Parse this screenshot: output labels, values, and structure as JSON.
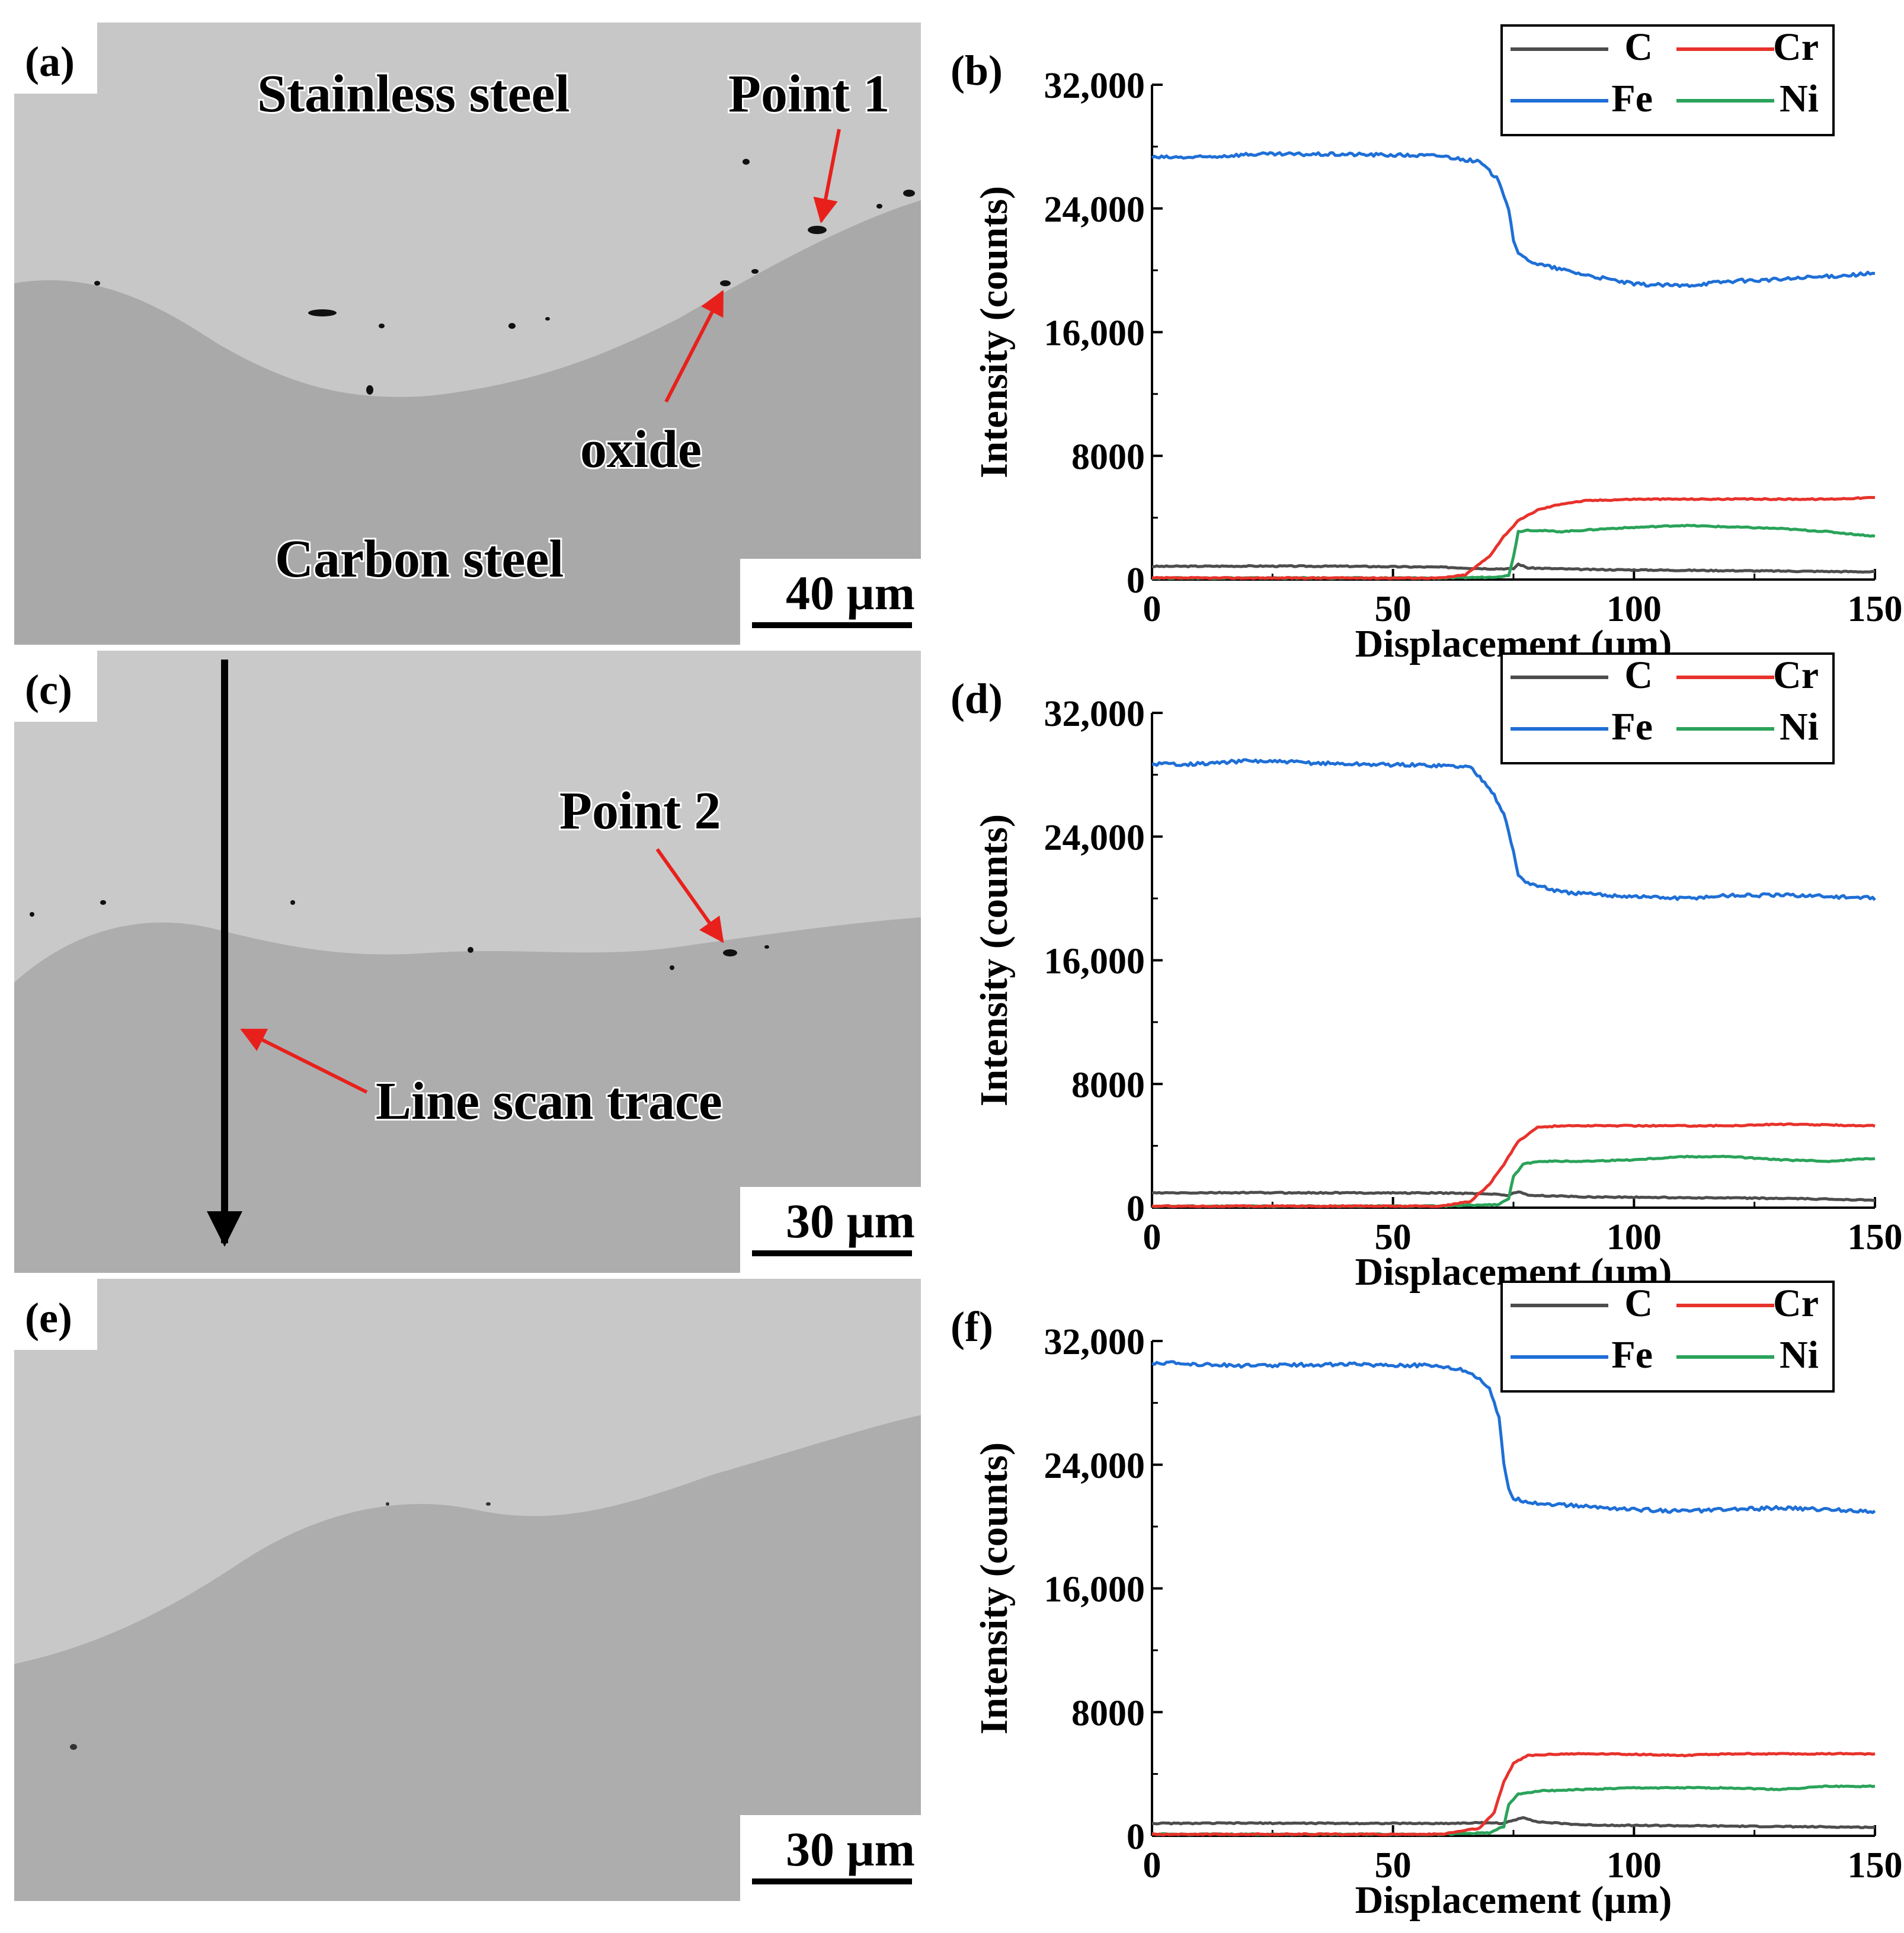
{
  "panels": [
    {
      "id": "a",
      "label": "(a)",
      "scale_bar": "40 µm",
      "annotations": {
        "top_region": "Stainless steel",
        "bottom_region": "Carbon steel",
        "point": "Point 1",
        "oxide": "oxide"
      }
    },
    {
      "id": "c",
      "label": "(c)",
      "scale_bar": "30 µm",
      "annotations": {
        "point": "Point 2",
        "trace": "Line scan trace"
      }
    },
    {
      "id": "e",
      "label": "(e)",
      "scale_bar": "30 µm",
      "annotations": {}
    }
  ],
  "colors": {
    "C": "#4d4d4d",
    "Cr": "#e8322c",
    "Fe": "#1f6fd6",
    "Ni": "#2aa35a",
    "arrow_red": "#e8201c"
  },
  "chart_data": [
    {
      "label": "(b)",
      "type": "line",
      "xlabel": "Displacement (µm)",
      "ylabel": "Intensity (counts)",
      "xlim": [
        0,
        150
      ],
      "ylim": [
        0,
        32000
      ],
      "xticks": [
        0,
        50,
        100,
        150
      ],
      "xtick_labels": [
        "0",
        "50",
        "100",
        "150"
      ],
      "yticks": [
        0,
        8000,
        16000,
        24000,
        32000
      ],
      "ytick_labels": [
        "0",
        "8000",
        "16,000",
        "24,000",
        "32,000"
      ],
      "legend": [
        "C",
        "Cr",
        "Fe",
        "Ni"
      ],
      "legend_position": "top-right",
      "series": [
        {
          "name": "Fe",
          "x": [
            0,
            10,
            20,
            40,
            60,
            68,
            72,
            74,
            75,
            76,
            80,
            90,
            100,
            110,
            120,
            130,
            140,
            150
          ],
          "y": [
            27300,
            27300,
            27500,
            27500,
            27400,
            27000,
            25800,
            24000,
            22000,
            21000,
            20400,
            19700,
            19100,
            19000,
            19300,
            19400,
            19600,
            19800
          ]
        },
        {
          "name": "Cr",
          "x": [
            0,
            60,
            65,
            70,
            73,
            76,
            80,
            85,
            90,
            100,
            110,
            120,
            130,
            140,
            150
          ],
          "y": [
            100,
            100,
            300,
            1500,
            2800,
            3800,
            4500,
            4900,
            5100,
            5200,
            5200,
            5200,
            5200,
            5200,
            5300
          ]
        },
        {
          "name": "Ni",
          "x": [
            0,
            60,
            70,
            74,
            75,
            76,
            78,
            85,
            95,
            110,
            120,
            130,
            140,
            150
          ],
          "y": [
            100,
            100,
            150,
            250,
            1500,
            3100,
            3200,
            3100,
            3300,
            3500,
            3400,
            3300,
            3100,
            2800
          ]
        },
        {
          "name": "C",
          "x": [
            0,
            20,
            40,
            60,
            70,
            75,
            76,
            78,
            90,
            110,
            130,
            150
          ],
          "y": [
            850,
            870,
            860,
            800,
            700,
            700,
            1000,
            750,
            650,
            600,
            550,
            500
          ]
        }
      ]
    },
    {
      "label": "(d)",
      "type": "line",
      "xlabel": "Displacement (µm)",
      "ylabel": "Intensity (counts)",
      "xlim": [
        0,
        150
      ],
      "ylim": [
        0,
        32000
      ],
      "xticks": [
        0,
        50,
        100,
        150
      ],
      "xtick_labels": [
        "0",
        "50",
        "100",
        "150"
      ],
      "yticks": [
        0,
        8000,
        16000,
        24000,
        32000
      ],
      "ytick_labels": [
        "0",
        "8000",
        "16,000",
        "24,000",
        "32,000"
      ],
      "legend": [
        "C",
        "Cr",
        "Fe",
        "Ni"
      ],
      "legend_position": "top-right",
      "series": [
        {
          "name": "Fe",
          "x": [
            0,
            10,
            20,
            40,
            60,
            66,
            70,
            73,
            75,
            76,
            78,
            85,
            95,
            110,
            120,
            135,
            150
          ],
          "y": [
            28700,
            28700,
            28900,
            28700,
            28600,
            28500,
            27200,
            25500,
            23000,
            21500,
            21000,
            20400,
            20200,
            20000,
            20200,
            20200,
            20000
          ]
        },
        {
          "name": "Cr",
          "x": [
            0,
            60,
            66,
            70,
            73,
            76,
            80,
            85,
            95,
            110,
            120,
            130,
            150
          ],
          "y": [
            100,
            100,
            400,
            1500,
            2800,
            4300,
            5200,
            5300,
            5300,
            5300,
            5300,
            5400,
            5300
          ]
        },
        {
          "name": "Ni",
          "x": [
            0,
            60,
            72,
            74,
            75,
            77,
            80,
            90,
            100,
            110,
            120,
            130,
            140,
            150
          ],
          "y": [
            100,
            100,
            200,
            600,
            2000,
            2800,
            3000,
            3000,
            3100,
            3300,
            3300,
            3100,
            3000,
            3200
          ]
        },
        {
          "name": "C",
          "x": [
            0,
            20,
            40,
            60,
            70,
            74,
            76,
            78,
            90,
            110,
            130,
            150
          ],
          "y": [
            950,
            970,
            960,
            950,
            900,
            800,
            1050,
            800,
            700,
            650,
            600,
            500
          ]
        }
      ]
    },
    {
      "label": "(f)",
      "type": "line",
      "xlabel": "Displacement (µm)",
      "ylabel": "Intensity (counts)",
      "xlim": [
        0,
        150
      ],
      "ylim": [
        0,
        32000
      ],
      "xticks": [
        0,
        50,
        100,
        150
      ],
      "xtick_labels": [
        "0",
        "50",
        "100",
        "150"
      ],
      "yticks": [
        0,
        8000,
        16000,
        24000,
        32000
      ],
      "ytick_labels": [
        "0",
        "8000",
        "16,000",
        "24,000",
        "32,000"
      ],
      "legend": [
        "C",
        "Cr",
        "Fe",
        "Ni"
      ],
      "legend_position": "top-right",
      "series": [
        {
          "name": "Fe",
          "x": [
            0,
            10,
            20,
            40,
            60,
            66,
            70,
            72,
            73,
            74,
            75,
            80,
            90,
            100,
            110,
            120,
            130,
            150
          ],
          "y": [
            30600,
            30500,
            30400,
            30500,
            30400,
            30000,
            29000,
            27000,
            24000,
            22500,
            21800,
            21500,
            21300,
            21100,
            21000,
            21100,
            21200,
            21000
          ]
        },
        {
          "name": "Cr",
          "x": [
            0,
            60,
            68,
            71,
            73,
            75,
            78,
            85,
            95,
            110,
            120,
            130,
            150
          ],
          "y": [
            100,
            100,
            500,
            1500,
            3500,
            4700,
            5200,
            5300,
            5300,
            5200,
            5300,
            5300,
            5300
          ]
        },
        {
          "name": "Ni",
          "x": [
            0,
            60,
            70,
            73,
            74,
            76,
            80,
            90,
            100,
            110,
            120,
            130,
            140,
            150
          ],
          "y": [
            100,
            100,
            200,
            600,
            2000,
            2700,
            2900,
            3000,
            3100,
            3100,
            3100,
            3000,
            3200,
            3200
          ]
        },
        {
          "name": "C",
          "x": [
            0,
            20,
            40,
            60,
            70,
            73,
            75,
            77,
            80,
            90,
            110,
            130,
            150
          ],
          "y": [
            800,
            820,
            810,
            800,
            850,
            800,
            1000,
            1200,
            900,
            700,
            650,
            600,
            550
          ]
        }
      ]
    }
  ]
}
